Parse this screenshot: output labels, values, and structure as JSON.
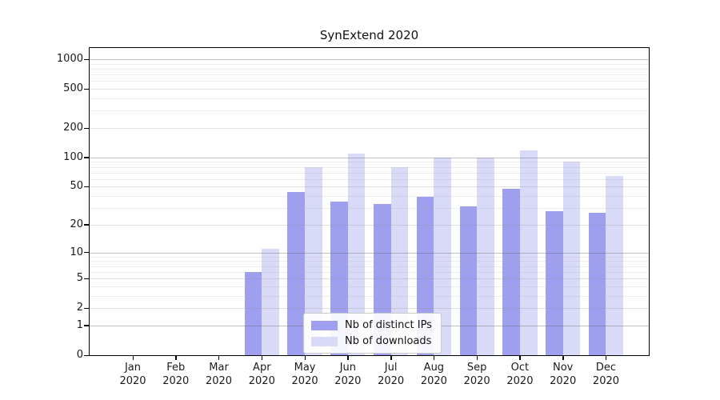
{
  "chart_data": {
    "type": "bar",
    "title": "SynExtend 2020",
    "categories": [
      "Jan 2020",
      "Feb 2020",
      "Mar 2020",
      "Apr 2020",
      "May 2020",
      "Jun 2020",
      "Jul 2020",
      "Aug 2020",
      "Sep 2020",
      "Oct 2020",
      "Nov 2020",
      "Dec 2020"
    ],
    "series": [
      {
        "name": "Nb of distinct IPs",
        "color": "#9f9fef",
        "values": [
          0,
          0,
          0,
          6,
          44,
          35,
          33,
          39,
          31,
          48,
          28,
          27
        ]
      },
      {
        "name": "Nb of downloads",
        "color": "#d9d9f8",
        "values": [
          0,
          0,
          0,
          11,
          79,
          110,
          79,
          100,
          100,
          118,
          90,
          65
        ]
      }
    ],
    "y_axis": {
      "scale": "log(1+x)",
      "ticks": [
        0,
        1,
        2,
        5,
        10,
        20,
        50,
        100,
        200,
        500,
        1000
      ],
      "minor_ticks": [
        3,
        4,
        6,
        7,
        8,
        9,
        30,
        40,
        60,
        70,
        80,
        90,
        300,
        400,
        600,
        700,
        800,
        900
      ],
      "ylim": [
        0,
        1300
      ]
    },
    "x_axis": {
      "label_format": "month over year"
    },
    "legend": {
      "position": "lower center"
    },
    "grid": true
  }
}
